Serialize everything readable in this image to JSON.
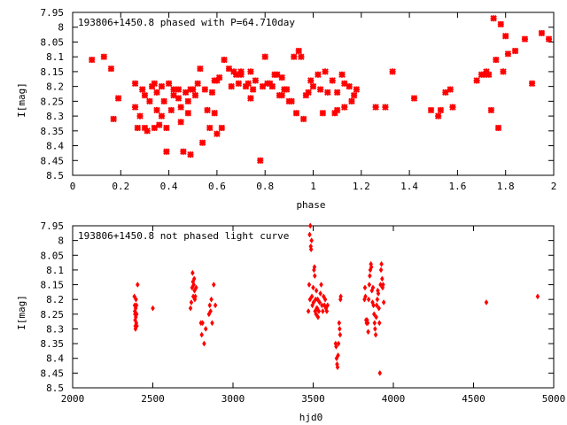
{
  "chart_data": [
    {
      "type": "scatter",
      "title": "193806+1450.8 phased with P=64.710day",
      "xlabel": "phase",
      "ylabel": "I[mag]",
      "xlim": [
        0,
        2
      ],
      "ylim": [
        8.5,
        7.95
      ],
      "y_inverted": true,
      "xticks": [
        "0",
        "0.2",
        "0.4",
        "0.6",
        "0.8",
        "1",
        "1.2",
        "1.4",
        "1.6",
        "1.8",
        "2"
      ],
      "xtick_values": [
        0,
        0.2,
        0.4,
        0.6,
        0.8,
        1.0,
        1.2,
        1.4,
        1.6,
        1.8,
        2.0
      ],
      "yticks": [
        "7.95",
        "8",
        "8.05",
        "8.1",
        "8.15",
        "8.2",
        "8.25",
        "8.3",
        "8.35",
        "8.4",
        "8.45",
        "8.5"
      ],
      "ytick_values": [
        7.95,
        8.0,
        8.05,
        8.1,
        8.15,
        8.2,
        8.25,
        8.3,
        8.35,
        8.4,
        8.45,
        8.5
      ],
      "grid": false,
      "marker_color": "#ff0000",
      "points": [
        [
          0.08,
          8.11
        ],
        [
          0.13,
          8.1
        ],
        [
          0.16,
          8.14
        ],
        [
          0.17,
          8.31
        ],
        [
          0.19,
          8.24
        ],
        [
          0.26,
          8.27
        ],
        [
          0.26,
          8.19
        ],
        [
          0.27,
          8.34
        ],
        [
          0.28,
          8.3
        ],
        [
          0.29,
          8.21
        ],
        [
          0.3,
          8.34
        ],
        [
          0.3,
          8.23
        ],
        [
          0.31,
          8.35
        ],
        [
          0.32,
          8.25
        ],
        [
          0.33,
          8.2
        ],
        [
          0.34,
          8.34
        ],
        [
          0.34,
          8.19
        ],
        [
          0.35,
          8.22
        ],
        [
          0.35,
          8.28
        ],
        [
          0.36,
          8.33
        ],
        [
          0.37,
          8.3
        ],
        [
          0.37,
          8.2
        ],
        [
          0.38,
          8.25
        ],
        [
          0.39,
          8.34
        ],
        [
          0.39,
          8.42
        ],
        [
          0.4,
          8.19
        ],
        [
          0.41,
          8.28
        ],
        [
          0.42,
          8.21
        ],
        [
          0.42,
          8.23
        ],
        [
          0.44,
          8.21
        ],
        [
          0.44,
          8.24
        ],
        [
          0.45,
          8.32
        ],
        [
          0.45,
          8.27
        ],
        [
          0.46,
          8.42
        ],
        [
          0.47,
          8.22
        ],
        [
          0.48,
          8.25
        ],
        [
          0.48,
          8.29
        ],
        [
          0.49,
          8.21
        ],
        [
          0.49,
          8.43
        ],
        [
          0.5,
          8.21
        ],
        [
          0.51,
          8.23
        ],
        [
          0.52,
          8.19
        ],
        [
          0.53,
          8.14
        ],
        [
          0.54,
          8.39
        ],
        [
          0.55,
          8.21
        ],
        [
          0.56,
          8.28
        ],
        [
          0.57,
          8.34
        ],
        [
          0.58,
          8.22
        ],
        [
          0.59,
          8.29
        ],
        [
          0.59,
          8.18
        ],
        [
          0.6,
          8.36
        ],
        [
          0.6,
          8.18
        ],
        [
          0.61,
          8.17
        ],
        [
          0.62,
          8.34
        ],
        [
          0.63,
          8.11
        ],
        [
          0.65,
          8.14
        ],
        [
          0.66,
          8.2
        ],
        [
          0.67,
          8.15
        ],
        [
          0.68,
          8.16
        ],
        [
          0.69,
          8.19
        ],
        [
          0.7,
          8.15
        ],
        [
          0.7,
          8.16
        ],
        [
          0.72,
          8.2
        ],
        [
          0.73,
          8.19
        ],
        [
          0.74,
          8.15
        ],
        [
          0.74,
          8.24
        ],
        [
          0.75,
          8.21
        ],
        [
          0.76,
          8.18
        ],
        [
          0.78,
          8.45
        ],
        [
          0.79,
          8.2
        ],
        [
          0.8,
          8.1
        ],
        [
          0.81,
          8.19
        ],
        [
          0.82,
          8.19
        ],
        [
          0.83,
          8.2
        ],
        [
          0.84,
          8.16
        ],
        [
          0.85,
          8.16
        ],
        [
          0.86,
          8.23
        ],
        [
          0.87,
          8.23
        ],
        [
          0.87,
          8.17
        ],
        [
          0.88,
          8.21
        ],
        [
          0.89,
          8.21
        ],
        [
          0.9,
          8.25
        ],
        [
          0.91,
          8.25
        ],
        [
          0.92,
          8.1
        ],
        [
          0.93,
          8.29
        ],
        [
          0.94,
          8.08
        ],
        [
          0.95,
          8.1
        ],
        [
          0.96,
          8.31
        ],
        [
          0.97,
          8.23
        ],
        [
          0.98,
          8.22
        ],
        [
          0.99,
          8.18
        ],
        [
          1.0,
          8.2
        ],
        [
          1.02,
          8.16
        ],
        [
          1.03,
          8.21
        ],
        [
          1.04,
          8.29
        ],
        [
          1.05,
          8.15
        ],
        [
          1.06,
          8.22
        ],
        [
          1.08,
          8.18
        ],
        [
          1.09,
          8.29
        ],
        [
          1.1,
          8.22
        ],
        [
          1.1,
          8.28
        ],
        [
          1.12,
          8.16
        ],
        [
          1.13,
          8.19
        ],
        [
          1.13,
          8.27
        ],
        [
          1.15,
          8.2
        ],
        [
          1.16,
          8.25
        ],
        [
          1.17,
          8.23
        ],
        [
          1.18,
          8.21
        ],
        [
          1.26,
          8.27
        ],
        [
          1.3,
          8.27
        ],
        [
          1.33,
          8.15
        ],
        [
          1.42,
          8.24
        ],
        [
          1.49,
          8.28
        ],
        [
          1.52,
          8.3
        ],
        [
          1.53,
          8.28
        ],
        [
          1.55,
          8.22
        ],
        [
          1.57,
          8.21
        ],
        [
          1.58,
          8.27
        ],
        [
          1.68,
          8.18
        ],
        [
          1.7,
          8.16
        ],
        [
          1.71,
          8.16
        ],
        [
          1.72,
          8.15
        ],
        [
          1.73,
          8.16
        ],
        [
          1.74,
          8.28
        ],
        [
          1.75,
          7.97
        ],
        [
          1.76,
          8.11
        ],
        [
          1.77,
          8.34
        ],
        [
          1.78,
          7.99
        ],
        [
          1.79,
          8.15
        ],
        [
          1.8,
          8.03
        ],
        [
          1.81,
          8.09
        ],
        [
          1.84,
          8.08
        ],
        [
          1.88,
          8.04
        ],
        [
          1.91,
          8.19
        ],
        [
          1.95,
          8.02
        ],
        [
          1.98,
          8.04
        ]
      ]
    },
    {
      "type": "scatter",
      "title": "193806+1450.8 not phased light curve",
      "xlabel": "hjd0",
      "ylabel": "I[mag]",
      "xlim": [
        2000,
        5000
      ],
      "ylim": [
        8.5,
        7.95
      ],
      "y_inverted": true,
      "xticks": [
        "2000",
        "2500",
        "3000",
        "3500",
        "4000",
        "4500",
        "5000"
      ],
      "xtick_values": [
        2000,
        2500,
        3000,
        3500,
        4000,
        4500,
        5000
      ],
      "yticks": [
        "7.95",
        "8",
        "8.05",
        "8.1",
        "8.15",
        "8.2",
        "8.25",
        "8.3",
        "8.35",
        "8.4",
        "8.45",
        "8.5"
      ],
      "ytick_values": [
        7.95,
        8.0,
        8.05,
        8.1,
        8.15,
        8.2,
        8.25,
        8.3,
        8.35,
        8.4,
        8.45,
        8.5
      ],
      "grid": false,
      "marker_color": "#ff0000",
      "points": [
        [
          2385,
          8.19
        ],
        [
          2387,
          8.22
        ],
        [
          2388,
          8.24
        ],
        [
          2389,
          8.25
        ],
        [
          2390,
          8.27
        ],
        [
          2391,
          8.29
        ],
        [
          2392,
          8.3
        ],
        [
          2393,
          8.23
        ],
        [
          2394,
          8.26
        ],
        [
          2395,
          8.2
        ],
        [
          2397,
          8.28
        ],
        [
          2398,
          8.22
        ],
        [
          2399,
          8.25
        ],
        [
          2400,
          8.29
        ],
        [
          2405,
          8.15
        ],
        [
          2500,
          8.23
        ],
        [
          2735,
          8.23
        ],
        [
          2740,
          8.21
        ],
        [
          2745,
          8.16
        ],
        [
          2748,
          8.11
        ],
        [
          2750,
          8.14
        ],
        [
          2752,
          8.19
        ],
        [
          2755,
          8.15
        ],
        [
          2758,
          8.13
        ],
        [
          2760,
          8.17
        ],
        [
          2762,
          8.2
        ],
        [
          2765,
          8.19
        ],
        [
          2770,
          8.16
        ],
        [
          2800,
          8.28
        ],
        [
          2805,
          8.32
        ],
        [
          2810,
          8.28
        ],
        [
          2820,
          8.35
        ],
        [
          2830,
          8.3
        ],
        [
          2850,
          8.25
        ],
        [
          2855,
          8.22
        ],
        [
          2860,
          8.24
        ],
        [
          2865,
          8.2
        ],
        [
          2870,
          8.28
        ],
        [
          2880,
          8.15
        ],
        [
          2890,
          8.22
        ],
        [
          3470,
          8.24
        ],
        [
          3475,
          8.15
        ],
        [
          3478,
          7.98
        ],
        [
          3480,
          8.2
        ],
        [
          3482,
          7.95
        ],
        [
          3485,
          8.02
        ],
        [
          3487,
          8.03
        ],
        [
          3490,
          8.0
        ],
        [
          3492,
          8.19
        ],
        [
          3495,
          8.22
        ],
        [
          3500,
          8.16
        ],
        [
          3502,
          8.21
        ],
        [
          3505,
          8.1
        ],
        [
          3508,
          8.09
        ],
        [
          3510,
          8.12
        ],
        [
          3512,
          8.24
        ],
        [
          3515,
          8.2
        ],
        [
          3518,
          8.25
        ],
        [
          3520,
          8.17
        ],
        [
          3522,
          8.23
        ],
        [
          3525,
          8.23
        ],
        [
          3528,
          8.2
        ],
        [
          3530,
          8.26
        ],
        [
          3535,
          8.24
        ],
        [
          3540,
          8.21
        ],
        [
          3545,
          8.18
        ],
        [
          3550,
          8.15
        ],
        [
          3555,
          8.22
        ],
        [
          3560,
          8.24
        ],
        [
          3565,
          8.19
        ],
        [
          3570,
          8.22
        ],
        [
          3575,
          8.2
        ],
        [
          3580,
          8.23
        ],
        [
          3585,
          8.24
        ],
        [
          3590,
          8.22
        ],
        [
          3640,
          8.35
        ],
        [
          3643,
          8.36
        ],
        [
          3646,
          8.4
        ],
        [
          3649,
          8.42
        ],
        [
          3652,
          8.43
        ],
        [
          3655,
          8.39
        ],
        [
          3658,
          8.35
        ],
        [
          3662,
          8.28
        ],
        [
          3665,
          8.3
        ],
        [
          3668,
          8.32
        ],
        [
          3670,
          8.2
        ],
        [
          3672,
          8.19
        ],
        [
          3820,
          8.2
        ],
        [
          3823,
          8.16
        ],
        [
          3826,
          8.19
        ],
        [
          3830,
          8.27
        ],
        [
          3833,
          8.28
        ],
        [
          3836,
          8.27
        ],
        [
          3840,
          8.28
        ],
        [
          3843,
          8.31
        ],
        [
          3846,
          8.2
        ],
        [
          3850,
          8.15
        ],
        [
          3853,
          8.12
        ],
        [
          3856,
          8.1
        ],
        [
          3860,
          8.08
        ],
        [
          3863,
          8.09
        ],
        [
          3866,
          8.17
        ],
        [
          3870,
          8.21
        ],
        [
          3873,
          8.16
        ],
        [
          3876,
          8.22
        ],
        [
          3880,
          8.25
        ],
        [
          3883,
          8.28
        ],
        [
          3886,
          8.3
        ],
        [
          3890,
          8.32
        ],
        [
          3893,
          8.26
        ],
        [
          3896,
          8.22
        ],
        [
          3900,
          8.2
        ],
        [
          3903,
          8.17
        ],
        [
          3906,
          8.18
        ],
        [
          3910,
          8.23
        ],
        [
          3913,
          8.28
        ],
        [
          3916,
          8.45
        ],
        [
          3920,
          8.15
        ],
        [
          3923,
          8.1
        ],
        [
          3926,
          8.08
        ],
        [
          3930,
          8.13
        ],
        [
          3933,
          8.16
        ],
        [
          3936,
          8.15
        ],
        [
          3940,
          8.21
        ],
        [
          4580,
          8.21
        ],
        [
          4900,
          8.19
        ]
      ]
    }
  ]
}
